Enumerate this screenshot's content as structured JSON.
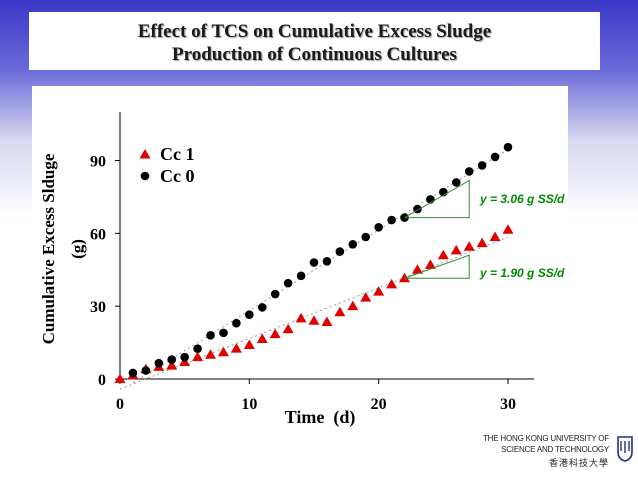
{
  "title": {
    "line1": "Effect of TCS on Cumulative Excess Sludge",
    "line2": "Production of Continuous Cultures"
  },
  "logo": {
    "line1": "THE HONG KONG UNIVERSITY OF",
    "line2": "SCIENCE AND TECHNOLOGY",
    "line3": "香港科技大學"
  },
  "chart_data": {
    "type": "scatter",
    "xlabel": "Time  (d)",
    "ylabel_line1": "Cumulative Excess Slduge",
    "ylabel_line2": "(g)",
    "xlim": [
      0,
      30
    ],
    "ylim": [
      0,
      110
    ],
    "xticks": [
      0,
      10,
      20,
      30
    ],
    "yticks": [
      0,
      30,
      60,
      90
    ],
    "legend_position": "top-left",
    "series": [
      {
        "name": "Cc 1",
        "marker": "triangle",
        "color": "#e00000",
        "x": [
          0,
          1,
          2,
          3,
          4,
          5,
          6,
          7,
          8,
          9,
          10,
          11,
          12,
          13,
          14,
          15,
          16,
          17,
          18,
          19,
          20,
          21,
          22,
          23,
          24,
          25,
          26,
          27,
          28,
          29,
          30
        ],
        "y": [
          0,
          1.5,
          4,
          5,
          5.5,
          7,
          9,
          10,
          11,
          12.5,
          14,
          16.5,
          18.5,
          20.5,
          25,
          24,
          23.5,
          27.5,
          30,
          33.5,
          36,
          39,
          41.5,
          45,
          47,
          51,
          53,
          54.5,
          56,
          58.5,
          61.5
        ]
      },
      {
        "name": "Cc 0",
        "marker": "circle",
        "color": "#000000",
        "x": [
          1,
          2,
          3,
          4,
          5,
          6,
          7,
          8,
          9,
          10,
          11,
          12,
          13,
          14,
          15,
          16,
          17,
          18,
          19,
          20,
          21,
          22,
          23,
          24,
          25,
          26,
          27,
          28,
          29,
          30
        ],
        "y": [
          2.5,
          3.5,
          6.5,
          8,
          9,
          12.5,
          18,
          19,
          23,
          26.5,
          29.5,
          35,
          39.5,
          42.5,
          48,
          48.5,
          52.5,
          55.5,
          58.5,
          62.5,
          65.5,
          66.5,
          70,
          74,
          77,
          81,
          85.5,
          88,
          91.5,
          95.5
        ]
      }
    ],
    "annotations": [
      {
        "text": "y = 3.06 g SS/d",
        "color": "#008a00"
      },
      {
        "text": "y = 1.90 g SS/d",
        "color": "#008a00"
      }
    ]
  }
}
